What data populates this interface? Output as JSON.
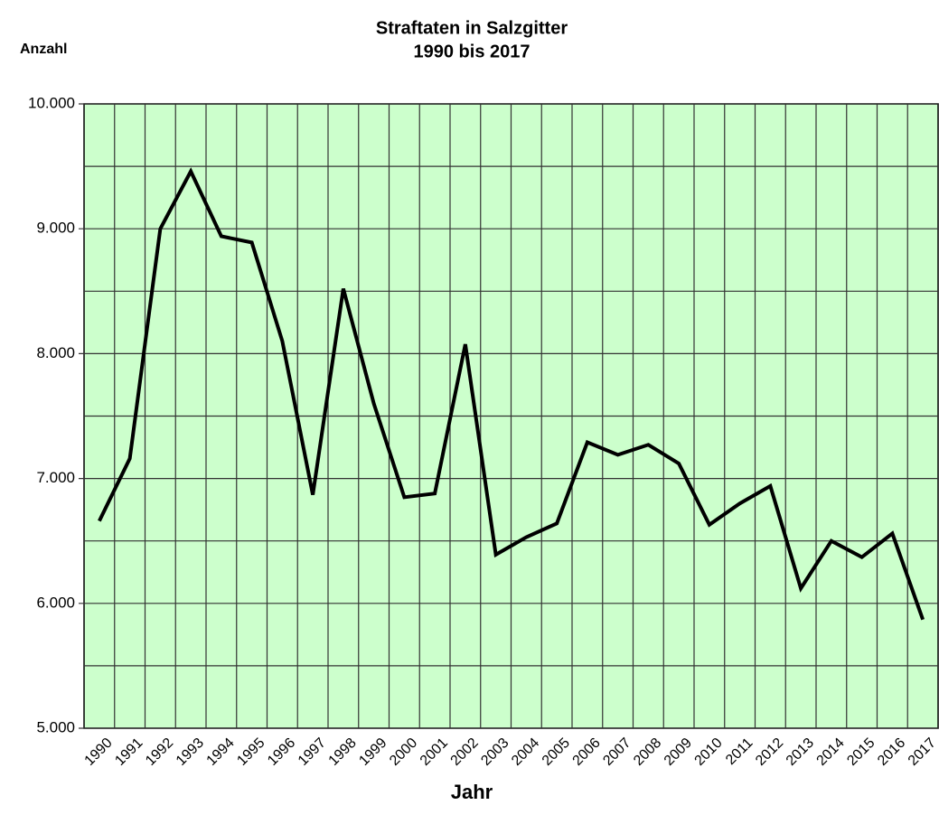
{
  "chart_data": {
    "type": "line",
    "title": "Straftaten in Salzgitter",
    "subtitle": "1990 bis 2017",
    "y_label": "Anzahl",
    "x_label": "Jahr",
    "categories": [
      "1990",
      "1991",
      "1992",
      "1993",
      "1994",
      "1995",
      "1996",
      "1997",
      "1998",
      "1999",
      "2000",
      "2001",
      "2002",
      "2003",
      "2004",
      "2005",
      "2006",
      "2007",
      "2008",
      "2009",
      "2010",
      "2011",
      "2012",
      "2013",
      "2014",
      "2015",
      "2016",
      "2017"
    ],
    "series": [
      {
        "name": "Straftaten",
        "color": "#000000",
        "values": [
          6660,
          7160,
          9000,
          9460,
          8940,
          8890,
          8100,
          6870,
          8520,
          7600,
          6850,
          6880,
          8075,
          6390,
          6530,
          6640,
          7290,
          7190,
          7270,
          7120,
          6630,
          6800,
          6940,
          6120,
          6500,
          6370,
          6560,
          5870
        ]
      }
    ],
    "ylim": [
      5000,
      10000
    ],
    "yticks": [
      {
        "value": 5000,
        "label": "5.000"
      },
      {
        "value": 6000,
        "label": "6.000"
      },
      {
        "value": 7000,
        "label": "7.000"
      },
      {
        "value": 8000,
        "label": "8.000"
      },
      {
        "value": 9000,
        "label": "9.000"
      },
      {
        "value": 10000,
        "label": "10.000"
      }
    ],
    "y_minor_ticks": [
      5500,
      6500,
      7500,
      8500,
      9500
    ],
    "grid": true,
    "background": "#ccffcc"
  }
}
